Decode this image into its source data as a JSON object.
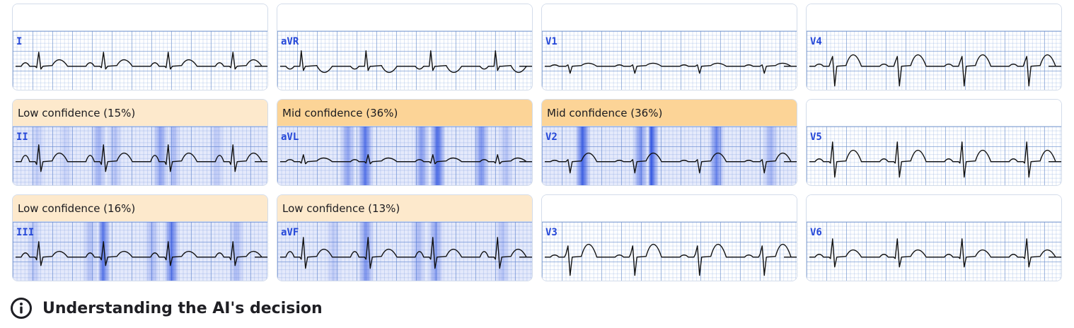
{
  "leads": [
    {
      "id": "I",
      "label": "I",
      "header": "",
      "confidence_level": "none",
      "heat": [],
      "wave": "normal"
    },
    {
      "id": "aVR",
      "label": "aVR",
      "header": "",
      "confidence_level": "none",
      "heat": [],
      "wave": "avr"
    },
    {
      "id": "V1",
      "label": "V1",
      "header": "",
      "confidence_level": "none",
      "heat": [],
      "wave": "v1"
    },
    {
      "id": "V4",
      "label": "V4",
      "header": "",
      "confidence_level": "none",
      "heat": [],
      "wave": "v4"
    },
    {
      "id": "II",
      "label": "II",
      "header": "Low confidence (15%)",
      "confidence_level": "low",
      "confidence_pct": 15,
      "heat": [
        [
          35,
          0.18
        ],
        [
          75,
          0.15
        ],
        [
          122,
          0.35
        ],
        [
          145,
          0.25
        ],
        [
          210,
          0.45
        ],
        [
          228,
          0.3
        ],
        [
          290,
          0.2
        ]
      ],
      "wave": "ii"
    },
    {
      "id": "aVL",
      "label": "aVL",
      "header": "Mid confidence (36%)",
      "confidence_level": "mid",
      "confidence_pct": 36,
      "heat": [
        [
          100,
          0.45
        ],
        [
          125,
          0.75
        ],
        [
          205,
          0.5
        ],
        [
          228,
          0.8
        ],
        [
          290,
          0.55
        ],
        [
          325,
          0.25
        ]
      ],
      "wave": "avl"
    },
    {
      "id": "V2",
      "label": "V2",
      "header": "Mid confidence (36%)",
      "confidence_level": "mid",
      "confidence_pct": 36,
      "heat": [
        [
          58,
          0.85
        ],
        [
          140,
          0.55
        ],
        [
          155,
          0.95
        ],
        [
          248,
          0.65
        ],
        [
          325,
          0.35
        ]
      ],
      "wave": "v2"
    },
    {
      "id": "V5",
      "label": "V5",
      "header": "",
      "confidence_level": "none",
      "heat": [],
      "wave": "v5"
    },
    {
      "id": "III",
      "label": "III",
      "header": "Low confidence (16%)",
      "confidence_level": "low",
      "confidence_pct": 16,
      "heat": [
        [
          30,
          0.2
        ],
        [
          110,
          0.25
        ],
        [
          128,
          0.75
        ],
        [
          198,
          0.3
        ],
        [
          226,
          0.7
        ],
        [
          318,
          0.3
        ]
      ],
      "wave": "iii"
    },
    {
      "id": "aVF",
      "label": "aVF",
      "header": "Low confidence (13%)",
      "confidence_level": "low",
      "confidence_pct": 13,
      "heat": [
        [
          80,
          0.2
        ],
        [
          126,
          0.55
        ],
        [
          200,
          0.3
        ],
        [
          225,
          0.45
        ],
        [
          320,
          0.25
        ]
      ],
      "wave": "avf"
    },
    {
      "id": "V3",
      "label": "V3",
      "header": "",
      "confidence_level": "none",
      "heat": [],
      "wave": "v3"
    },
    {
      "id": "V6",
      "label": "V6",
      "header": "",
      "confidence_level": "none",
      "heat": [],
      "wave": "v6"
    }
  ],
  "footer": {
    "icon": "info-circle-icon",
    "text": "Understanding the AI's decision"
  },
  "colors": {
    "lead_label": "#2447d8",
    "low_confidence_bg": "#fde9cc",
    "mid_confidence_bg": "#fcd497",
    "heatmap": "#2a4fe0",
    "grid_major": "#6e91cd",
    "card_border": "#d3dcea"
  }
}
